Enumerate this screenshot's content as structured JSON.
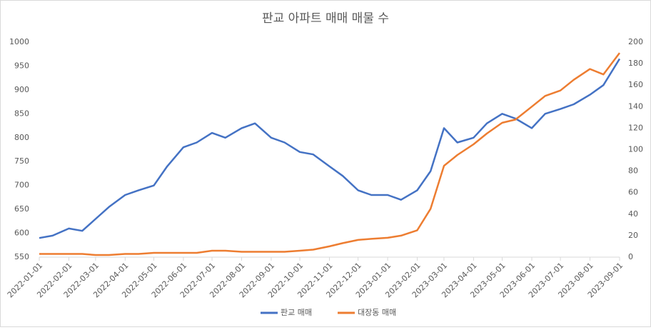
{
  "chart_data": {
    "type": "line",
    "title": "판교 아파트 매매 매물 수",
    "x": [
      "2022-01-01",
      "2022-01-15",
      "2022-02-01",
      "2022-02-15",
      "2022-03-01",
      "2022-03-15",
      "2022-04-01",
      "2022-04-15",
      "2022-05-01",
      "2022-05-15",
      "2022-06-01",
      "2022-06-15",
      "2022-07-01",
      "2022-07-15",
      "2022-08-01",
      "2022-08-15",
      "2022-09-01",
      "2022-09-15",
      "2022-10-01",
      "2022-10-15",
      "2022-11-01",
      "2022-11-15",
      "2022-12-01",
      "2022-12-15",
      "2023-01-01",
      "2023-01-15",
      "2023-02-01",
      "2023-02-15",
      "2023-03-01",
      "2023-03-15",
      "2023-04-01",
      "2023-04-15",
      "2023-05-01",
      "2023-05-15",
      "2023-06-01",
      "2023-06-15",
      "2023-07-01",
      "2023-07-15",
      "2023-08-01",
      "2023-08-15",
      "2023-09-01"
    ],
    "series": [
      {
        "name": "판교 매매",
        "color": "#4472c4",
        "values": [
          590,
          595,
          610,
          605,
          630,
          655,
          680,
          690,
          700,
          740,
          780,
          790,
          810,
          800,
          820,
          830,
          800,
          790,
          770,
          765,
          740,
          720,
          690,
          680,
          680,
          670,
          690,
          730,
          820,
          790,
          800,
          830,
          850,
          840,
          820,
          850,
          860,
          870,
          890,
          910,
          965
        ]
      },
      {
        "name": "대장동 매매",
        "color": "#ed7d31",
        "axis": "y2",
        "values": [
          3,
          3,
          3,
          3,
          2,
          2,
          3,
          3,
          4,
          4,
          4,
          4,
          6,
          6,
          5,
          5,
          5,
          5,
          6,
          7,
          10,
          13,
          16,
          17,
          18,
          20,
          25,
          45,
          85,
          95,
          105,
          115,
          125,
          128,
          140,
          150,
          155,
          165,
          175,
          170,
          190
        ]
      }
    ],
    "xticks": [
      "2022-01-01",
      "2022-02-01",
      "2022-03-01",
      "2022-04-01",
      "2022-05-01",
      "2022-06-01",
      "2022-07-01",
      "2022-08-01",
      "2022-09-01",
      "2022-10-01",
      "2022-11-01",
      "2022-12-01",
      "2023-01-01",
      "2023-02-01",
      "2023-03-01",
      "2023-04-01",
      "2023-05-01",
      "2023-06-01",
      "2023-07-01",
      "2023-08-01",
      "2023-09-01"
    ],
    "ylim": [
      550,
      1000
    ],
    "yticks": [
      550,
      600,
      650,
      700,
      750,
      800,
      850,
      900,
      950,
      1000
    ],
    "y2lim": [
      0,
      200
    ],
    "y2ticks": [
      0,
      20,
      40,
      60,
      80,
      100,
      120,
      140,
      160,
      180,
      200
    ],
    "legend": "bottom"
  }
}
